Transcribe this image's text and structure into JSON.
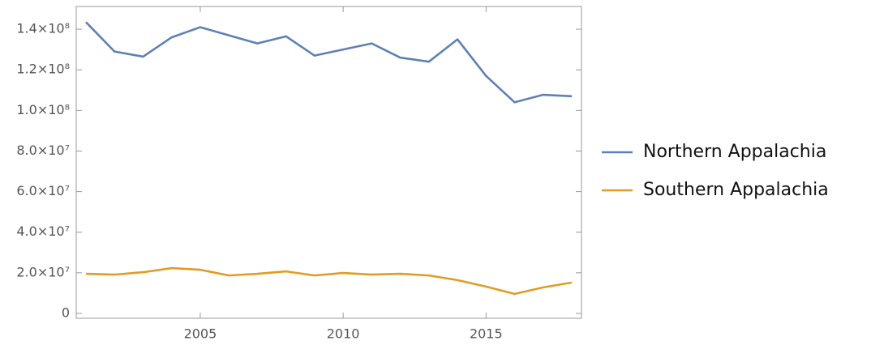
{
  "chart_data": {
    "type": "line",
    "x": [
      2001,
      2002,
      2003,
      2004,
      2005,
      2006,
      2007,
      2008,
      2009,
      2010,
      2011,
      2012,
      2013,
      2014,
      2015,
      2016,
      2017,
      2018
    ],
    "series": [
      {
        "name": "Northern Appalachia",
        "color": "#5e81b5",
        "values": [
          143500000,
          129000000,
          126500000,
          136000000,
          141000000,
          137000000,
          133000000,
          136500000,
          127000000,
          130000000,
          133000000,
          126000000,
          124000000,
          135000000,
          117000000,
          104000000,
          107700000,
          107000000
        ]
      },
      {
        "name": "Southern Appalachia",
        "color": "#e19c24",
        "values": [
          19500000,
          19100000,
          20300000,
          22300000,
          21500000,
          18700000,
          19500000,
          20700000,
          18700000,
          19900000,
          19100000,
          19500000,
          18700000,
          16400000,
          13200000,
          9600000,
          12800000,
          15200000
        ]
      }
    ],
    "xlim": [
      2000.66,
      2018.34
    ],
    "xticks": [
      2005,
      2010,
      2015
    ],
    "ylim": [
      -2400000,
      151200000
    ],
    "yticks": [
      0,
      {
        "value": 20000000,
        "label": "2.0×10⁷"
      },
      {
        "value": 40000000,
        "label": "4.0×10⁷"
      },
      {
        "value": 60000000,
        "label": "6.0×10⁷"
      },
      {
        "value": 80000000,
        "label": "8.0×10⁷"
      },
      {
        "value": 100000000,
        "label": "1.0×10⁸"
      },
      {
        "value": 120000000,
        "label": "1.2×10⁸"
      },
      {
        "value": 140000000,
        "label": "1.4×10⁸"
      }
    ],
    "legend": "right"
  }
}
